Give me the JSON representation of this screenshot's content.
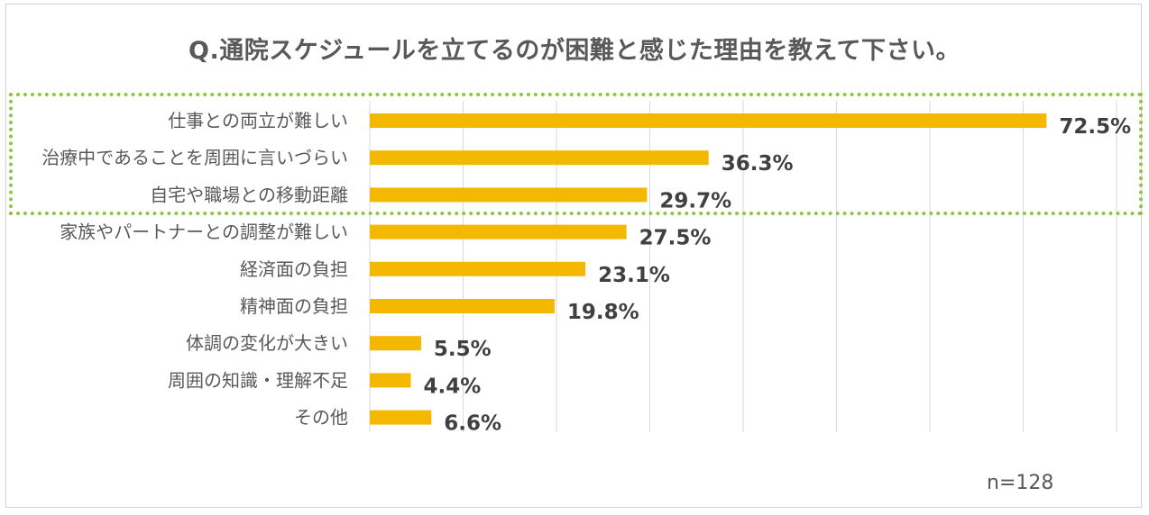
{
  "chart_data": {
    "type": "bar",
    "orientation": "horizontal",
    "title": "Q.通院スケジュールを立てるのが困難と感じた理由を教えて下さい。",
    "categories": [
      "仕事との両立が難しい",
      "治療中であることを周囲に言いづらい",
      "自宅や職場との移動距離",
      "家族やパートナーとの調整が難しい",
      "経済面の負担",
      "精神面の負担",
      "体調の変化が大きい",
      "周囲の知識・理解不足",
      "その他"
    ],
    "values": [
      72.5,
      36.3,
      29.7,
      27.5,
      23.1,
      19.8,
      5.5,
      4.4,
      6.6
    ],
    "value_labels": [
      "72.5%",
      "36.3%",
      "29.7%",
      "27.5%",
      "23.1%",
      "19.8%",
      "5.5%",
      "4.4%",
      "6.6%"
    ],
    "xlim": [
      0,
      80
    ],
    "grid": true,
    "bar_color": "#f5b800",
    "highlight_color": "#8dc63f",
    "highlighted_categories": [
      0,
      1,
      2
    ]
  },
  "footnote": "n=128"
}
